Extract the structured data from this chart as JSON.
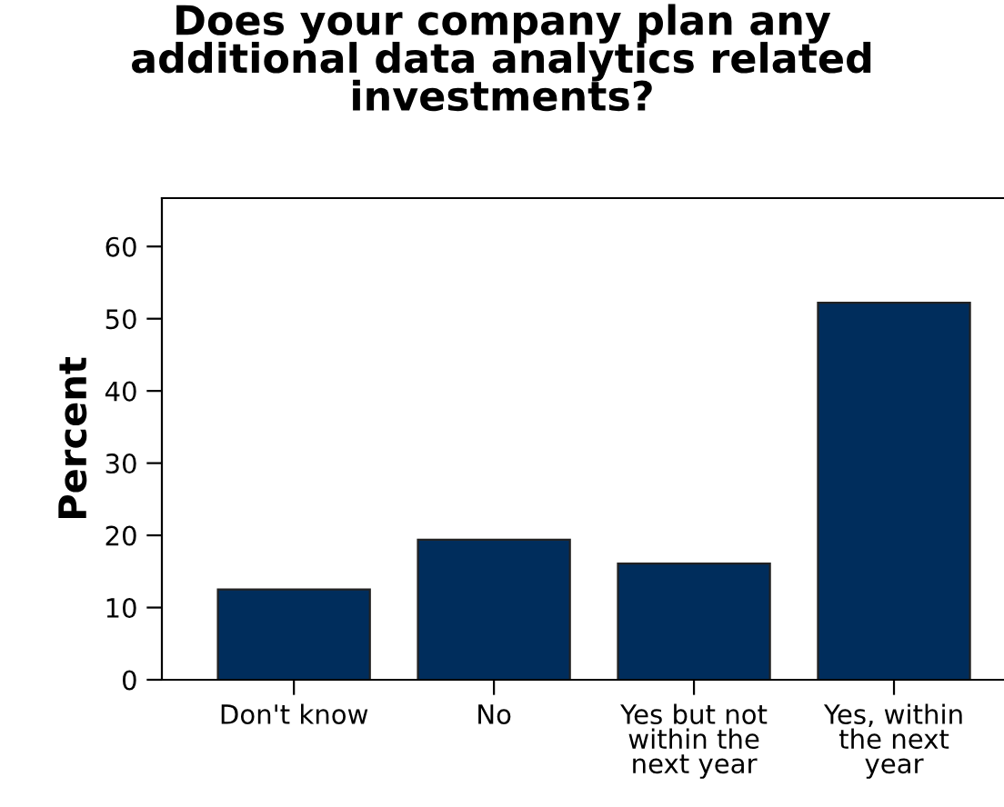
{
  "chart_data": {
    "type": "bar",
    "title": "Does your company plan any\nadditional data analytics related\ninvestments?",
    "ylabel": "Percent",
    "categories": [
      "Don't know",
      "No",
      "Yes but not\nwithin the\nnext year",
      "Yes, within\nthe next\nyear"
    ],
    "values": [
      12.5,
      19.4,
      16.1,
      52.2
    ],
    "color": "#002d5c",
    "ylim": [
      0,
      66.7
    ],
    "yticks": [
      0,
      10,
      20,
      30,
      40,
      50,
      60
    ],
    "grid": false
  }
}
